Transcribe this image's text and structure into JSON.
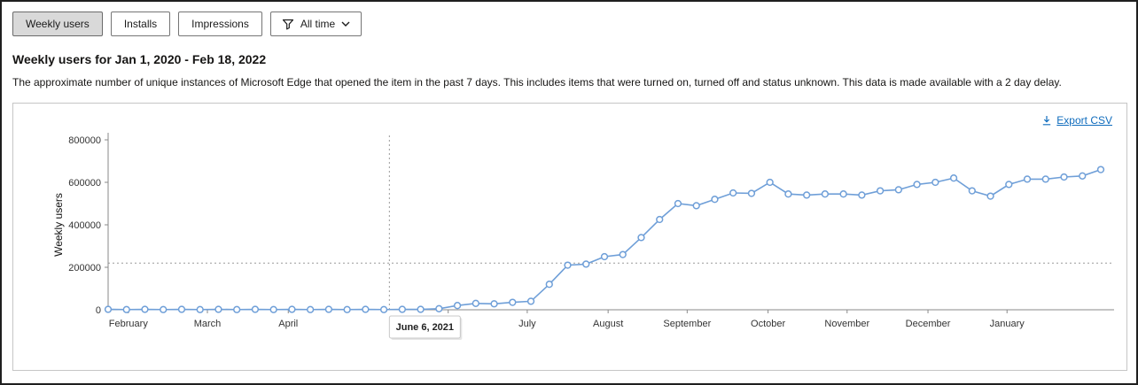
{
  "toolbar": {
    "tabs": [
      {
        "label": "Weekly users",
        "selected": true
      },
      {
        "label": "Installs",
        "selected": false
      },
      {
        "label": "Impressions",
        "selected": false
      }
    ],
    "filter": {
      "label": "All time"
    }
  },
  "page": {
    "title": "Weekly users for Jan 1, 2020 - Feb 18, 2022",
    "description": "The approximate number of unique instances of Microsoft Edge that opened the item in the past 7 days. This includes items that were turned on, turned off and status unknown. This data is made available with a 2 day delay."
  },
  "chart": {
    "export_label": "Export CSV"
  },
  "chart_data": {
    "type": "line",
    "title": "Weekly users for Jan 1, 2020 - Feb 18, 2022",
    "xlabel": "",
    "ylabel": "Weekly users",
    "ylim": [
      0,
      800000
    ],
    "yticks": [
      0,
      200000,
      400000,
      600000,
      800000
    ],
    "x_unit": "week_index",
    "values": [
      2000,
      1000,
      2000,
      1000,
      2000,
      1000,
      2000,
      1000,
      2000,
      1000,
      2000,
      1000,
      2000,
      1000,
      2000,
      1000,
      2000,
      2000,
      5000,
      20000,
      30000,
      28000,
      35000,
      40000,
      120000,
      210000,
      215000,
      250000,
      260000,
      340000,
      425000,
      500000,
      490000,
      520000,
      550000,
      548000,
      600000,
      545000,
      540000,
      545000,
      545000,
      540000,
      560000,
      565000,
      590000,
      600000,
      620000,
      560000,
      535000,
      590000,
      615000,
      615000,
      625000,
      630000,
      660000
    ],
    "xticks": [
      {
        "label": "February",
        "week": 1.1
      },
      {
        "label": "March",
        "week": 5.4
      },
      {
        "label": "April",
        "week": 9.8
      },
      {
        "label": "June",
        "week": 18.5
      },
      {
        "label": "July",
        "week": 22.8
      },
      {
        "label": "August",
        "week": 27.2
      },
      {
        "label": "September",
        "week": 31.5
      },
      {
        "label": "October",
        "week": 35.9
      },
      {
        "label": "November",
        "week": 40.2
      },
      {
        "label": "December",
        "week": 44.6
      },
      {
        "label": "January",
        "week": 48.9
      }
    ],
    "crosshair": {
      "week": 15.3,
      "hline_value": 220000,
      "tooltip_date": "June 6, 2021"
    },
    "line_color": "#6f9fd8",
    "marker": "open-circle",
    "legend": "none",
    "grid": "dotted reference lines at crosshair only"
  }
}
